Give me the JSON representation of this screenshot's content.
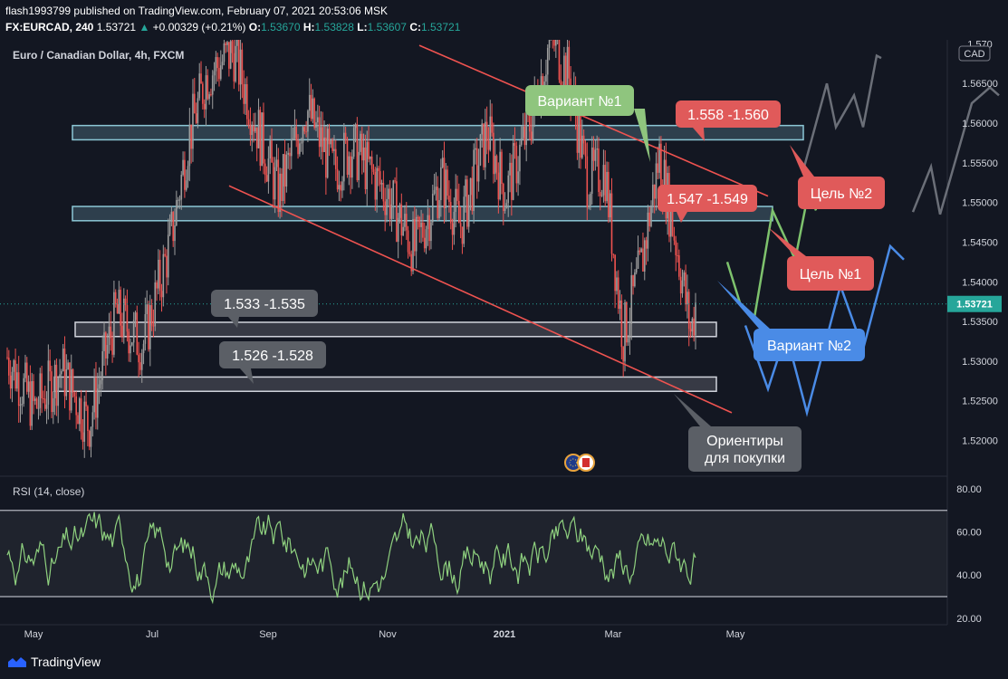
{
  "header": {
    "line1": "flash1993799 published on TradingView.com, February 07, 2021 20:53:06 MSK",
    "symbol": "FX:EURCAD, 240",
    "last": "1.53721",
    "change": "+0.00329 (+0.21%)",
    "o_label": "O:",
    "o_value": "1.53670",
    "h_label": "H:",
    "h_value": "1.53828",
    "l_label": "L:",
    "l_value": "1.53607",
    "c_label": "C:",
    "c_value": "1.53721"
  },
  "legend_title": "Euro / Canadian Dollar, 4h, FXCM",
  "currency_badge": "CAD",
  "colors": {
    "background": "#131722",
    "up": "#9e9e9e",
    "down": "#ef5350",
    "zone_border_blue": "#8cc7d6",
    "zone_border_white": "#d1d4dc",
    "trend_line": "#ef5350",
    "scenario1": "#7ec26d",
    "scenario2": "#4a8be6",
    "scenario_gray": "#6b6f78",
    "rsi_line": "#8fd17f"
  },
  "chart_data": [
    {
      "type": "candlestick",
      "title": "Euro / Canadian Dollar, 4h, FXCM",
      "symbol": "EURCAD",
      "timeframe": "4h",
      "x_ticks": [
        "May",
        "Jul",
        "Sep",
        "Nov",
        "2021",
        "Mar",
        "May"
      ],
      "y_ticks": [
        "1.52000",
        "1.52500",
        "1.53000",
        "1.53500",
        "1.54000",
        "1.54500",
        "1.55000",
        "1.55500",
        "1.56000",
        "1.56500"
      ],
      "y_top_tick_partial": "1.570",
      "ylim": [
        1.5155,
        1.5705
      ],
      "last_price": "1.53721",
      "price_path": [
        [
          0,
          1.5305
        ],
        [
          0.03,
          1.524
        ],
        [
          0.06,
          1.529
        ],
        [
          0.09,
          1.522
        ],
        [
          0.12,
          1.536
        ],
        [
          0.15,
          1.532
        ],
        [
          0.18,
          1.545
        ],
        [
          0.2,
          1.558
        ],
        [
          0.22,
          1.566
        ],
        [
          0.25,
          1.569
        ],
        [
          0.28,
          1.558
        ],
        [
          0.3,
          1.551
        ],
        [
          0.33,
          1.562
        ],
        [
          0.36,
          1.554
        ],
        [
          0.38,
          1.557
        ],
        [
          0.42,
          1.551
        ],
        [
          0.45,
          1.544
        ],
        [
          0.48,
          1.553
        ],
        [
          0.5,
          1.547
        ],
        [
          0.53,
          1.559
        ],
        [
          0.55,
          1.551
        ],
        [
          0.58,
          1.561
        ],
        [
          0.6,
          1.571
        ],
        [
          0.62,
          1.566
        ],
        [
          0.64,
          1.553
        ],
        [
          0.66,
          1.554
        ],
        [
          0.68,
          1.533
        ],
        [
          0.7,
          1.542
        ],
        [
          0.72,
          1.556
        ],
        [
          0.74,
          1.544
        ],
        [
          0.755,
          1.5335
        ],
        [
          0.76,
          1.5372
        ]
      ],
      "zones": [
        {
          "from": 1.5579,
          "to": 1.5597,
          "style": "blue"
        },
        {
          "from": 1.5477,
          "to": 1.5495,
          "style": "blue"
        },
        {
          "from": 1.5331,
          "to": 1.5349,
          "style": "white"
        },
        {
          "from": 1.5262,
          "to": 1.528,
          "style": "white"
        }
      ],
      "trend_lines": [
        {
          "from": [
            0.455,
            1.5698
          ],
          "to": [
            0.84,
            1.5508
          ]
        },
        {
          "from": [
            0.245,
            1.5521
          ],
          "to": [
            0.8,
            1.5235
          ]
        }
      ],
      "scenarios": [
        {
          "name": "Вариант №1",
          "color": "scenario1",
          "points": [
            [
              0.795,
              1.5425
            ],
            [
              0.81,
              1.537
            ],
            [
              0.825,
              1.5355
            ],
            [
              0.845,
              1.549
            ],
            [
              0.87,
              1.5428
            ],
            [
              0.885,
              1.5515
            ],
            [
              0.893,
              1.549
            ]
          ]
        },
        {
          "name": "Вариант №2",
          "color": "scenario2",
          "points": [
            [
              0.815,
              1.5345
            ],
            [
              0.84,
              1.5265
            ],
            [
              0.86,
              1.5335
            ],
            [
              0.883,
              1.5235
            ],
            [
              0.92,
              1.5395
            ],
            [
              0.945,
              1.5315
            ],
            [
              0.975,
              1.5445
            ],
            [
              0.99,
              1.5428
            ]
          ]
        },
        {
          "name": "gray_path_1",
          "color": "scenario_gray",
          "points": [
            [
              0.88,
              1.5545
            ],
            [
              0.905,
              1.565
            ],
            [
              0.915,
              1.5595
            ],
            [
              0.935,
              1.5635
            ],
            [
              0.945,
              1.5595
            ],
            [
              0.96,
              1.5685
            ],
            [
              0.965,
              1.5682
            ]
          ]
        },
        {
          "name": "gray_path_2",
          "color": "scenario_gray",
          "points": [
            [
              1.0,
              1.5488
            ],
            [
              1.02,
              1.5545
            ],
            [
              1.03,
              1.5485
            ],
            [
              1.065,
              1.5625
            ],
            [
              1.085,
              1.5645
            ],
            [
              1.095,
              1.5635
            ]
          ]
        }
      ],
      "annotations": [
        {
          "text": "Вариант №1",
          "bg": "#8fc57e"
        },
        {
          "text": "1.558 -1.560",
          "bg": "#e05a5a"
        },
        {
          "text": "Цель №2",
          "bg": "#e05a5a"
        },
        {
          "text": "1.547 -1.549",
          "bg": "#e05a5a"
        },
        {
          "text": "Цель №1",
          "bg": "#e05a5a"
        },
        {
          "text": "1.533 -1.535",
          "bg": "#5b5f66"
        },
        {
          "text": "1.526 -1.528",
          "bg": "#5b5f66"
        },
        {
          "text": "Вариант №2",
          "bg": "#4a8be6"
        },
        {
          "text": "Ориентиры",
          "text2": "для покупки",
          "bg": "#5b5f66"
        }
      ]
    },
    {
      "type": "line",
      "title": "RSI (14, close)",
      "y_ticks": [
        "20.00",
        "40.00",
        "60.00",
        "80.00"
      ],
      "ylim": [
        17,
        85
      ],
      "bands": [
        30,
        70
      ],
      "grid": false
    }
  ]
}
